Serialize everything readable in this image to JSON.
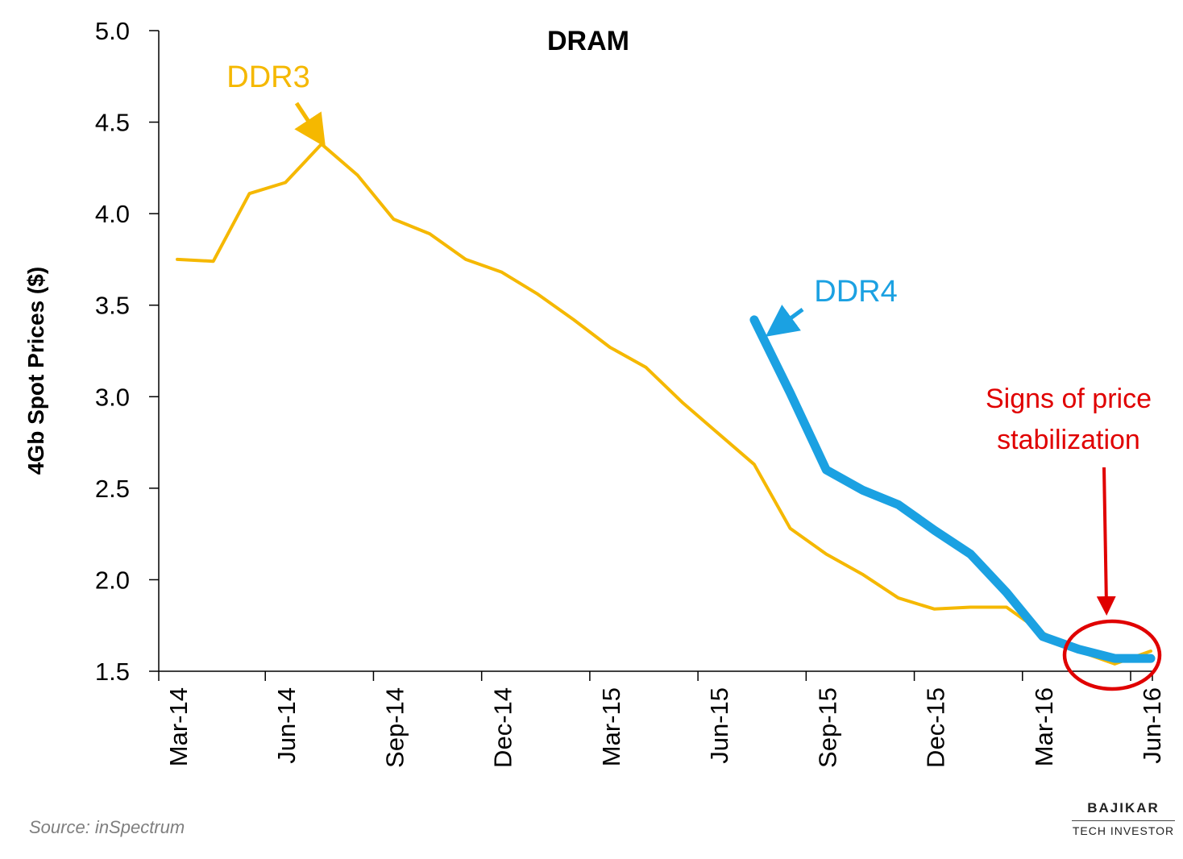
{
  "chart_data": {
    "type": "line",
    "title": "DRAM",
    "ylabel": "4Gb Spot Prices ($)",
    "xlabel": "",
    "ylim": [
      1.5,
      5.0
    ],
    "yticks": [
      "1.5",
      "2.0",
      "2.5",
      "3.0",
      "3.5",
      "4.0",
      "4.5",
      "5.0"
    ],
    "categories": [
      "Mar-14",
      "Apr-14",
      "May-14",
      "Jun-14",
      "Jul-14",
      "Aug-14",
      "Sep-14",
      "Oct-14",
      "Nov-14",
      "Dec-14",
      "Jan-15",
      "Feb-15",
      "Mar-15",
      "Apr-15",
      "May-15",
      "Jun-15",
      "Jul-15",
      "Aug-15",
      "Sep-15",
      "Oct-15",
      "Nov-15",
      "Dec-15",
      "Jan-16",
      "Feb-16",
      "Mar-16",
      "Apr-16",
      "May-16",
      "Jun-16"
    ],
    "tick_labels": [
      "Mar-14",
      "Jun-14",
      "Sep-14",
      "Dec-14",
      "Mar-15",
      "Jun-15",
      "Sep-15",
      "Dec-15",
      "Mar-16",
      "Jun-16"
    ],
    "grid": false,
    "series": [
      {
        "name": "DDR3",
        "color": "#f5b800",
        "values": [
          3.75,
          3.74,
          4.11,
          4.17,
          4.38,
          4.21,
          3.97,
          3.89,
          3.75,
          3.68,
          3.56,
          3.42,
          3.27,
          3.16,
          2.97,
          2.8,
          2.63,
          2.28,
          2.14,
          2.03,
          1.9,
          1.84,
          1.85,
          1.85,
          1.71,
          1.61,
          1.54,
          1.61
        ]
      },
      {
        "name": "DDR4",
        "color": "#1ba1e2",
        "values": [
          null,
          null,
          null,
          null,
          null,
          null,
          null,
          null,
          null,
          null,
          null,
          null,
          null,
          null,
          null,
          null,
          3.42,
          3.02,
          2.6,
          2.49,
          2.41,
          2.27,
          2.14,
          1.93,
          1.69,
          1.62,
          1.57,
          1.57
        ]
      }
    ],
    "annotations": {
      "stabilization_line1": "Signs of price",
      "stabilization_line2": "stabilization",
      "color": "#e00000"
    }
  },
  "source": "Source: inSpectrum",
  "logo": {
    "top": "BAJIKAR",
    "bottom": "TECH INVESTOR"
  }
}
